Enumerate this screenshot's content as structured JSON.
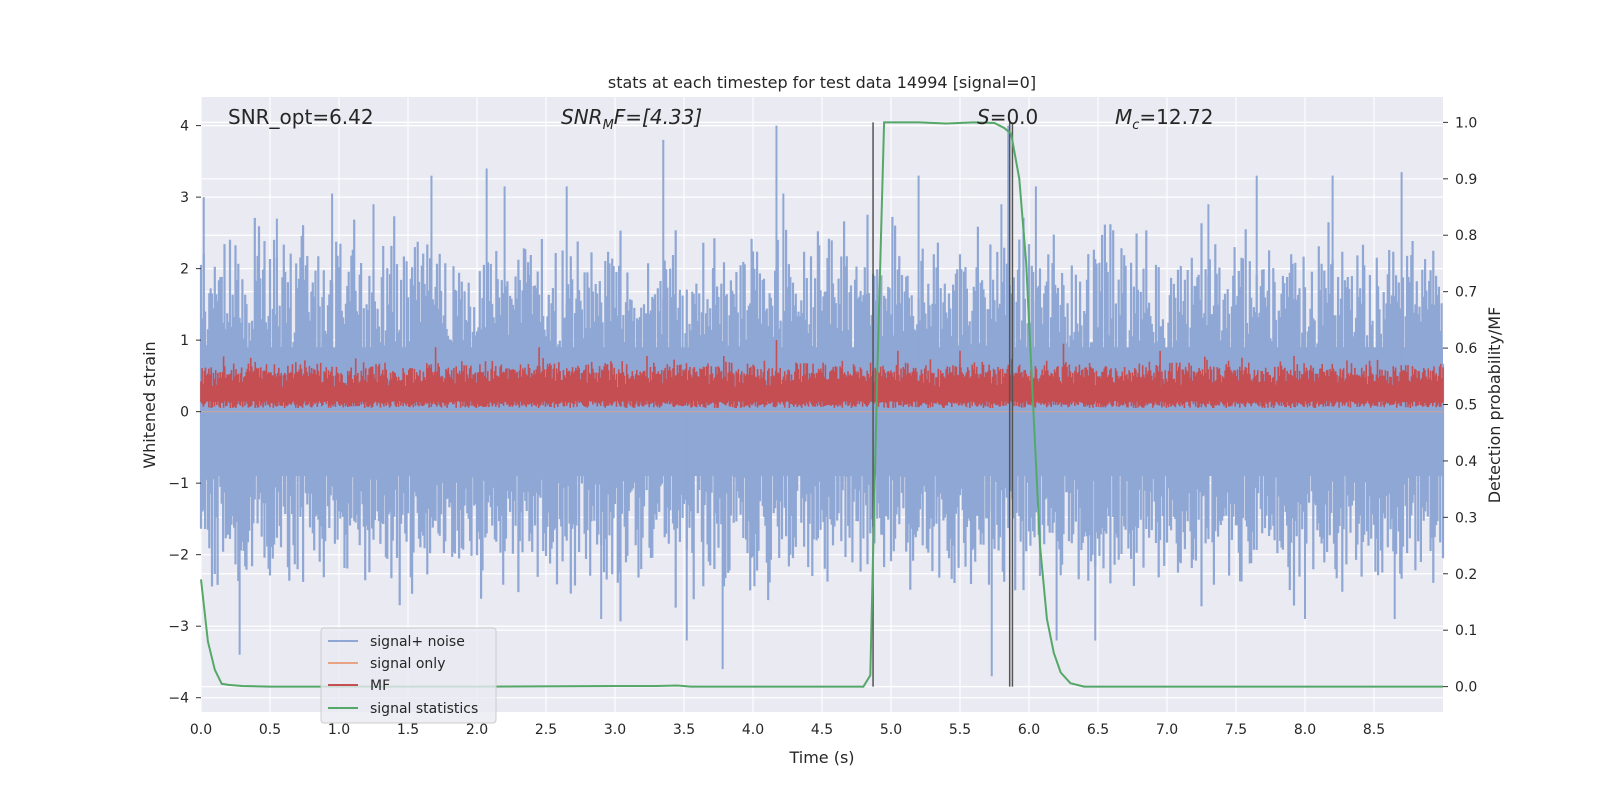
{
  "chart_data": {
    "type": "line",
    "title": "stats at each timestep for test data 14994 [signal=0]",
    "xlabel": "Time (s)",
    "ylabel_left": "Whitened strain",
    "ylabel_right": "Detection probability/MF",
    "xlim": [
      0,
      9
    ],
    "ylim_left": [
      -4.2,
      4.4
    ],
    "ylim_right": [
      -0.045,
      1.045
    ],
    "x_ticks": [
      "0.0",
      "0.5",
      "1.0",
      "1.5",
      "2.0",
      "2.5",
      "3.0",
      "3.5",
      "4.0",
      "4.5",
      "5.0",
      "5.5",
      "6.0",
      "6.5",
      "7.0",
      "7.5",
      "8.0",
      "8.5"
    ],
    "y_left_ticks": [
      "4",
      "3",
      "2",
      "1",
      "0",
      "−1",
      "−2",
      "−3",
      "−4"
    ],
    "y_right_ticks": [
      "1.0",
      "0.9",
      "0.8",
      "0.7",
      "0.6",
      "0.5",
      "0.4",
      "0.3",
      "0.2",
      "0.1",
      "0.0"
    ],
    "annotations": {
      "snr_opt": "SNR_opt=6.42",
      "snr_mf_name": "SNR",
      "snr_mf_sub": "M",
      "snr_mf_rest": "F=[4.33]",
      "s_name": "S",
      "s_rest": "=0.0",
      "mc_name": "M",
      "mc_sub": "c",
      "mc_rest": "=12.72"
    },
    "legend": {
      "position": "lower-left",
      "entries": [
        "signal+ noise",
        "signal only",
        "MF",
        "signal statistics"
      ]
    },
    "colors": {
      "signal_noise": "#8fa7d4",
      "signal_only": "#e8a384",
      "mf": "#c44e52",
      "signal_statistics": "#55a868",
      "markers": "#555555",
      "background": "#eaeaf2"
    },
    "marker_lines": {
      "x": [
        4.87,
        5.86,
        5.88
      ],
      "y_range": [
        0.0,
        1.0
      ]
    },
    "series": [
      {
        "name": "signal statistics",
        "axis": "right",
        "x": [
          0,
          0.05,
          0.1,
          0.15,
          0.2,
          0.3,
          0.5,
          1.0,
          2.0,
          3.0,
          3.3,
          3.45,
          3.55,
          4.0,
          4.5,
          4.8,
          4.85,
          4.9,
          4.95,
          5.2,
          5.4,
          5.6,
          5.75,
          5.82,
          5.87,
          5.93,
          5.98,
          6.03,
          6.08,
          6.13,
          6.18,
          6.23,
          6.3,
          6.4,
          7.0,
          8.0,
          9.0
        ],
        "y": [
          0.19,
          0.08,
          0.03,
          0.005,
          0.003,
          0.001,
          0.0,
          0.0,
          0.0,
          0.001,
          0.001,
          0.002,
          0.0,
          0.0,
          0.0,
          0.0,
          0.02,
          0.55,
          1.0,
          1.0,
          0.998,
          1.0,
          0.999,
          0.99,
          0.98,
          0.9,
          0.75,
          0.5,
          0.25,
          0.12,
          0.06,
          0.025,
          0.006,
          0.0,
          0.0,
          0.0,
          0.0
        ]
      },
      {
        "name": "signal+ noise",
        "axis": "left",
        "type": "noise",
        "typical_range": [
          -1.6,
          1.6
        ],
        "spikes": [
          {
            "x": 0.02,
            "y": 3.0
          },
          {
            "x": 0.28,
            "y": -3.4
          },
          {
            "x": 0.55,
            "y": 2.7
          },
          {
            "x": 0.95,
            "y": 3.05
          },
          {
            "x": 1.25,
            "y": 2.9
          },
          {
            "x": 1.67,
            "y": 3.3
          },
          {
            "x": 2.07,
            "y": 3.4
          },
          {
            "x": 2.2,
            "y": 3.15
          },
          {
            "x": 2.65,
            "y": 3.15
          },
          {
            "x": 2.9,
            "y": -2.9
          },
          {
            "x": 3.35,
            "y": 3.8
          },
          {
            "x": 3.52,
            "y": -3.2
          },
          {
            "x": 3.78,
            "y": -3.6
          },
          {
            "x": 4.17,
            "y": 4.0
          },
          {
            "x": 4.22,
            "y": 3.05
          },
          {
            "x": 5.2,
            "y": 3.3
          },
          {
            "x": 5.73,
            "y": -3.7
          },
          {
            "x": 5.8,
            "y": 2.9
          },
          {
            "x": 5.85,
            "y": 4.0
          },
          {
            "x": 6.05,
            "y": 3.15
          },
          {
            "x": 6.2,
            "y": -3.2
          },
          {
            "x": 6.48,
            "y": -3.2
          },
          {
            "x": 7.3,
            "y": 2.9
          },
          {
            "x": 7.65,
            "y": 3.3
          },
          {
            "x": 8.0,
            "y": -2.9
          },
          {
            "x": 8.2,
            "y": 3.3
          },
          {
            "x": 8.65,
            "y": -2.9
          },
          {
            "x": 8.7,
            "y": 3.35
          }
        ]
      },
      {
        "name": "MF",
        "axis": "left",
        "type": "noise",
        "typical_range": [
          0.05,
          0.55
        ],
        "spikes": [
          {
            "x": 1.7,
            "y": 0.9
          },
          {
            "x": 2.45,
            "y": 0.9
          },
          {
            "x": 4.17,
            "y": 1.0
          },
          {
            "x": 5.05,
            "y": 0.85
          },
          {
            "x": 5.5,
            "y": 0.85
          },
          {
            "x": 6.25,
            "y": 0.95
          },
          {
            "x": 6.95,
            "y": 0.85
          }
        ]
      },
      {
        "name": "signal only",
        "axis": "left",
        "x": [
          0,
          9
        ],
        "y": [
          0,
          0
        ]
      }
    ]
  }
}
